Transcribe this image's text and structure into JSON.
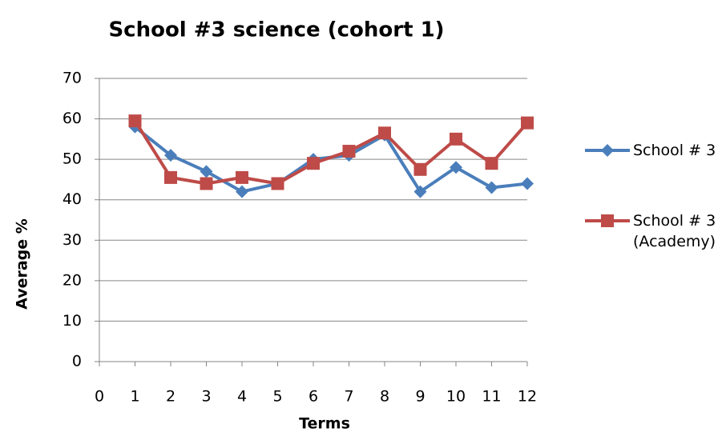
{
  "chart_data": {
    "type": "line",
    "title": "School #3 science (cohort 1)",
    "x_label": "Terms",
    "y_label": "Average %",
    "x": [
      1,
      2,
      3,
      4,
      5,
      6,
      7,
      8,
      9,
      10,
      11,
      12
    ],
    "series": [
      {
        "name": "School # 3",
        "color": "#4a7ebb",
        "marker": "diamond",
        "values": [
          58,
          51,
          47,
          42,
          44,
          50,
          51,
          56,
          42,
          48,
          43,
          44
        ]
      },
      {
        "name": "School # 3 (Academy)",
        "color": "#be4b48",
        "marker": "square",
        "values": [
          59.5,
          45.5,
          44,
          45.5,
          44,
          49,
          52,
          56.5,
          47.5,
          55,
          49,
          59
        ]
      }
    ],
    "xlim": [
      0,
      12
    ],
    "xticks": [
      0,
      1,
      2,
      3,
      4,
      5,
      6,
      7,
      8,
      9,
      10,
      11,
      12
    ],
    "ylim": [
      0,
      70
    ],
    "yticks": [
      0,
      10,
      20,
      30,
      40,
      50,
      60,
      70
    ],
    "grid": true,
    "legend": "right"
  }
}
